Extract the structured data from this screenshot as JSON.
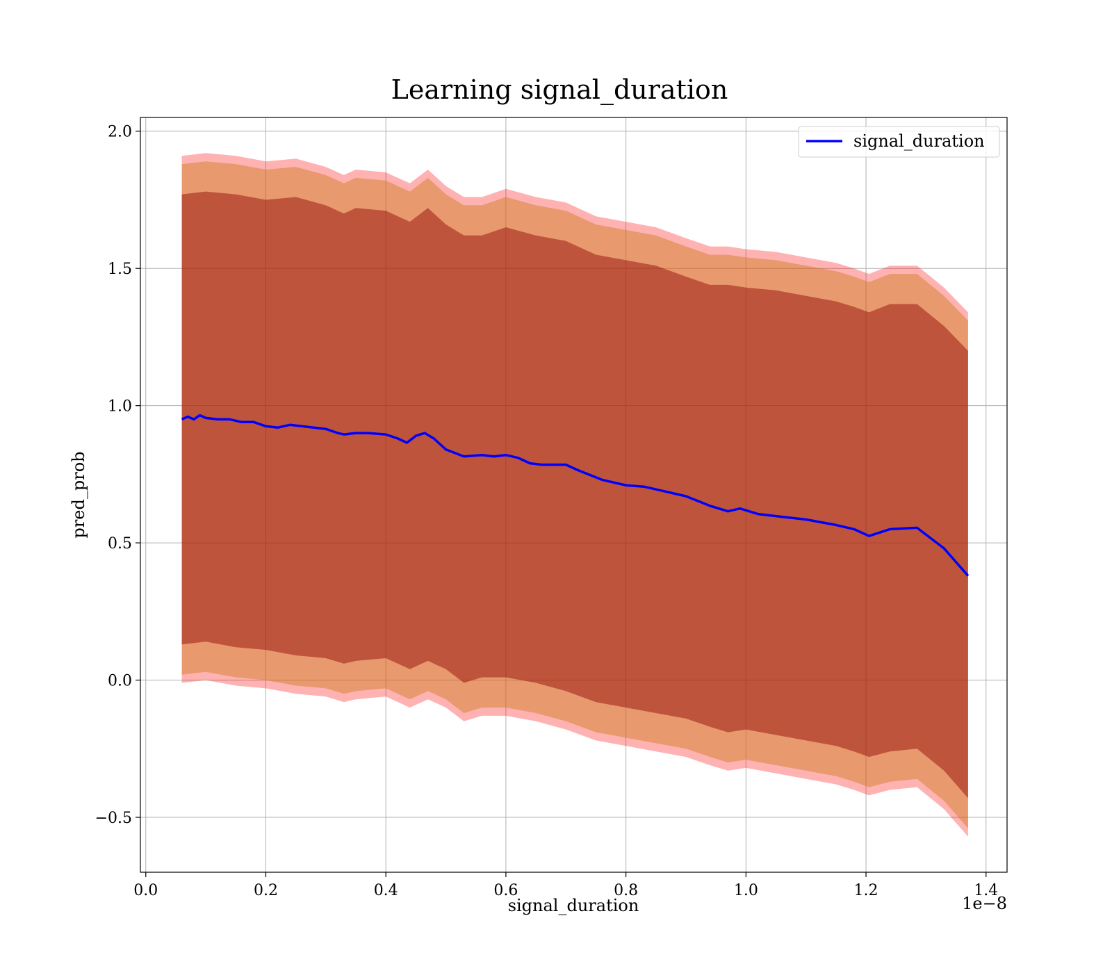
{
  "chart_data": {
    "type": "line",
    "title": "Learning signal_duration",
    "xlabel": "signal_duration",
    "ylabel": "pred_prob",
    "x_offset_label": "1e−8",
    "xlim": [
      -0.009,
      1.435
    ],
    "ylim": [
      -0.7,
      2.05
    ],
    "x_ticks": [
      0.0,
      0.2,
      0.4,
      0.6,
      0.8,
      1.0,
      1.2,
      1.4
    ],
    "x_tick_labels": [
      "0.0",
      "0.2",
      "0.4",
      "0.6",
      "0.8",
      "1.0",
      "1.2",
      "1.4"
    ],
    "y_ticks": [
      -0.5,
      0.0,
      0.5,
      1.0,
      1.5,
      2.0
    ],
    "y_tick_labels": [
      "−0.5",
      "0.0",
      "0.5",
      "1.0",
      "1.5",
      "2.0"
    ],
    "grid": true,
    "legend_position": "top-right",
    "colors": {
      "line": "#0000ff",
      "outer_band": "#ff0000",
      "inner_band": "#8b0000",
      "middle_band": "#cc7a1a",
      "grid": "#b0b0b0",
      "axes": "#000000"
    },
    "series": [
      {
        "name": "signal_duration",
        "x": [
          0.06,
          0.07,
          0.08,
          0.09,
          0.1,
          0.12,
          0.14,
          0.16,
          0.18,
          0.2,
          0.22,
          0.24,
          0.26,
          0.28,
          0.3,
          0.32,
          0.33,
          0.35,
          0.37,
          0.4,
          0.42,
          0.435,
          0.45,
          0.465,
          0.48,
          0.5,
          0.53,
          0.56,
          0.58,
          0.6,
          0.62,
          0.64,
          0.66,
          0.7,
          0.72,
          0.76,
          0.8,
          0.83,
          0.86,
          0.9,
          0.94,
          0.97,
          0.99,
          1.02,
          1.06,
          1.1,
          1.15,
          1.18,
          1.205,
          1.24,
          1.285,
          1.33,
          1.37
        ],
        "values": [
          0.95,
          0.96,
          0.95,
          0.965,
          0.955,
          0.95,
          0.95,
          0.94,
          0.94,
          0.925,
          0.92,
          0.93,
          0.925,
          0.92,
          0.915,
          0.9,
          0.895,
          0.9,
          0.9,
          0.895,
          0.88,
          0.865,
          0.89,
          0.9,
          0.88,
          0.84,
          0.815,
          0.82,
          0.815,
          0.82,
          0.81,
          0.79,
          0.785,
          0.785,
          0.765,
          0.73,
          0.71,
          0.705,
          0.69,
          0.67,
          0.635,
          0.615,
          0.625,
          0.605,
          0.595,
          0.585,
          0.565,
          0.55,
          0.525,
          0.55,
          0.555,
          0.48,
          0.38
        ]
      }
    ],
    "bands": [
      {
        "name": "outer",
        "x": [
          0.06,
          0.1,
          0.15,
          0.2,
          0.25,
          0.3,
          0.33,
          0.35,
          0.4,
          0.44,
          0.47,
          0.5,
          0.53,
          0.56,
          0.6,
          0.65,
          0.7,
          0.75,
          0.8,
          0.85,
          0.9,
          0.94,
          0.97,
          1.0,
          1.05,
          1.1,
          1.15,
          1.18,
          1.205,
          1.24,
          1.285,
          1.33,
          1.37
        ],
        "upper": [
          1.91,
          1.92,
          1.91,
          1.89,
          1.9,
          1.87,
          1.84,
          1.86,
          1.85,
          1.81,
          1.86,
          1.8,
          1.76,
          1.76,
          1.79,
          1.76,
          1.74,
          1.69,
          1.67,
          1.65,
          1.61,
          1.58,
          1.58,
          1.57,
          1.56,
          1.54,
          1.52,
          1.5,
          1.48,
          1.51,
          1.51,
          1.43,
          1.34
        ],
        "lower": [
          -0.01,
          0.0,
          -0.02,
          -0.03,
          -0.05,
          -0.06,
          -0.08,
          -0.07,
          -0.06,
          -0.1,
          -0.07,
          -0.1,
          -0.15,
          -0.13,
          -0.13,
          -0.15,
          -0.18,
          -0.22,
          -0.24,
          -0.26,
          -0.28,
          -0.31,
          -0.33,
          -0.32,
          -0.34,
          -0.36,
          -0.38,
          -0.4,
          -0.42,
          -0.4,
          -0.39,
          -0.47,
          -0.57
        ]
      },
      {
        "name": "inner",
        "x": [
          0.06,
          0.1,
          0.15,
          0.2,
          0.25,
          0.3,
          0.33,
          0.35,
          0.4,
          0.44,
          0.47,
          0.5,
          0.53,
          0.56,
          0.6,
          0.65,
          0.7,
          0.75,
          0.8,
          0.85,
          0.9,
          0.94,
          0.97,
          1.0,
          1.05,
          1.1,
          1.15,
          1.18,
          1.205,
          1.24,
          1.285,
          1.33,
          1.37
        ],
        "upper": [
          1.77,
          1.78,
          1.77,
          1.75,
          1.76,
          1.73,
          1.7,
          1.72,
          1.71,
          1.67,
          1.72,
          1.66,
          1.62,
          1.62,
          1.65,
          1.62,
          1.6,
          1.55,
          1.53,
          1.51,
          1.47,
          1.44,
          1.44,
          1.43,
          1.42,
          1.4,
          1.38,
          1.36,
          1.34,
          1.37,
          1.37,
          1.29,
          1.2
        ],
        "lower": [
          0.13,
          0.14,
          0.12,
          0.11,
          0.09,
          0.08,
          0.06,
          0.07,
          0.08,
          0.04,
          0.07,
          0.04,
          -0.01,
          0.01,
          0.01,
          -0.01,
          -0.04,
          -0.08,
          -0.1,
          -0.12,
          -0.14,
          -0.17,
          -0.19,
          -0.18,
          -0.2,
          -0.22,
          -0.24,
          -0.26,
          -0.28,
          -0.26,
          -0.25,
          -0.33,
          -0.43
        ]
      }
    ]
  }
}
